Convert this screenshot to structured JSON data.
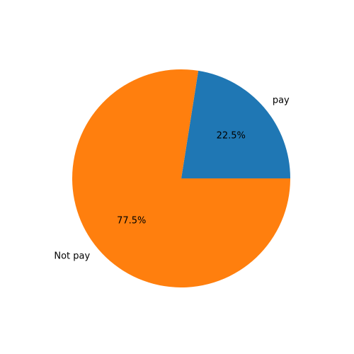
{
  "chart_data": {
    "type": "pie",
    "categories": [
      "pay",
      "Not pay"
    ],
    "values": [
      22.5,
      77.5
    ],
    "value_labels": [
      "22.5%",
      "77.5%"
    ],
    "colors": [
      "#1f77b4",
      "#ff7f0e"
    ],
    "start_angle_deg": 0,
    "direction": "counterclockwise",
    "legend": "none"
  }
}
